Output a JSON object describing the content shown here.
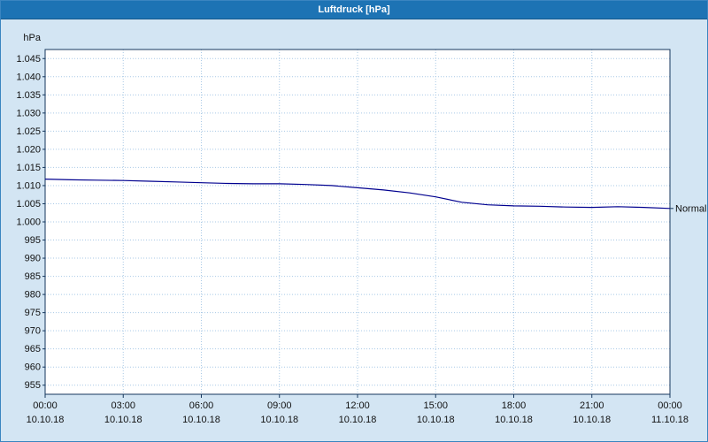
{
  "window": {
    "title": "Luftdruck [hPa]"
  },
  "chart_data": {
    "type": "line",
    "title": "Luftdruck [hPa]",
    "ylabel": "hPa",
    "xlabel": "",
    "grid": true,
    "legend_position": "line-end",
    "ylim": [
      952.5,
      1047.5
    ],
    "xlim": [
      0,
      24
    ],
    "yticks": [
      1045,
      1040,
      1035,
      1030,
      1025,
      1020,
      1015,
      1010,
      1005,
      1000,
      995,
      990,
      985,
      980,
      975,
      970,
      965,
      960,
      955
    ],
    "ytick_labels": [
      "1.045",
      "1.040",
      "1.035",
      "1.030",
      "1.025",
      "1.020",
      "1.015",
      "1.010",
      "1.005",
      "1.000",
      "995",
      "990",
      "985",
      "980",
      "975",
      "970",
      "965",
      "960",
      "955"
    ],
    "xticks": [
      0,
      3,
      6,
      9,
      12,
      15,
      18,
      21,
      24
    ],
    "xtick_labels": [
      "00:00",
      "03:00",
      "06:00",
      "09:00",
      "12:00",
      "15:00",
      "18:00",
      "21:00",
      "00:00"
    ],
    "xtick_dates": [
      "10.10.18",
      "10.10.18",
      "10.10.18",
      "10.10.18",
      "10.10.18",
      "10.10.18",
      "10.10.18",
      "10.10.18",
      "11.10.18"
    ],
    "series": [
      {
        "name": "Normal",
        "color": "#00008f",
        "x": [
          0,
          1,
          2,
          3,
          4,
          5,
          6,
          7,
          8,
          9,
          10,
          11,
          12,
          13,
          14,
          15,
          16,
          17,
          18,
          19,
          20,
          21,
          22,
          23,
          24
        ],
        "y": [
          1011.8,
          1011.6,
          1011.5,
          1011.4,
          1011.2,
          1011.0,
          1010.8,
          1010.6,
          1010.5,
          1010.5,
          1010.3,
          1010.0,
          1009.4,
          1008.8,
          1008.0,
          1006.9,
          1005.4,
          1004.7,
          1004.4,
          1004.3,
          1004.1,
          1004.0,
          1004.2,
          1004.0,
          1003.7
        ]
      }
    ],
    "colors": {
      "titlebar": "#1d73b4",
      "background": "#d3e5f3",
      "plot_background": "#ffffff",
      "grid": "#a9c9e6",
      "axis": "#16365c",
      "text": "#111111",
      "line": "#00008f"
    }
  }
}
